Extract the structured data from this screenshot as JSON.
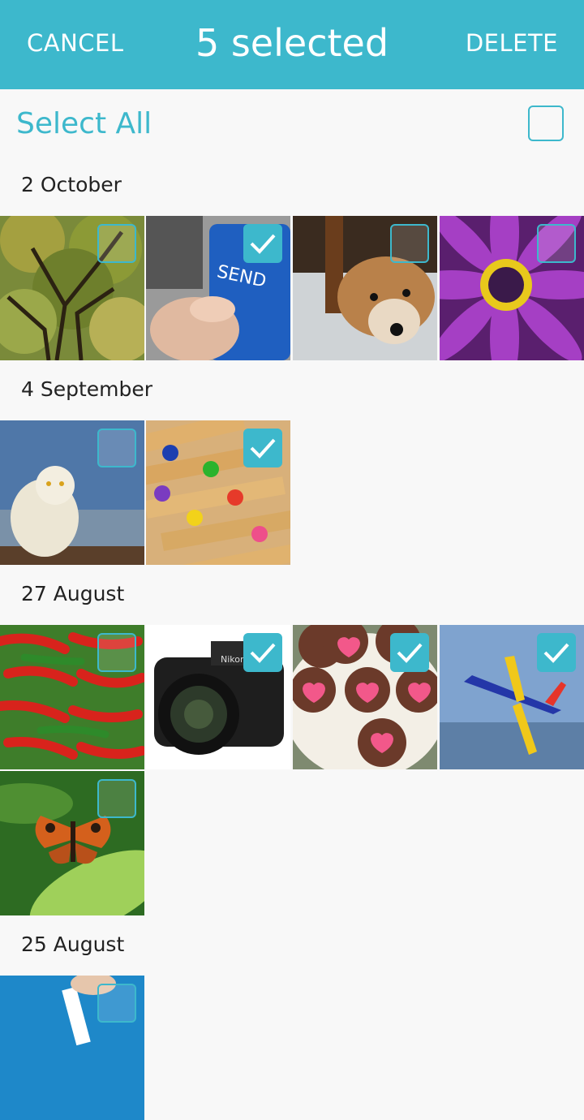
{
  "header": {
    "cancel_label": "CANCEL",
    "title": "5 selected",
    "delete_label": "DELETE"
  },
  "select_all": {
    "label": "Select All",
    "checked": false
  },
  "sections": [
    {
      "date": "2 October",
      "photos": [
        {
          "subject": "tree",
          "selected": false
        },
        {
          "subject": "send-key",
          "selected": true
        },
        {
          "subject": "dog",
          "selected": false
        },
        {
          "subject": "purple-flower",
          "selected": false
        }
      ]
    },
    {
      "date": "4 September",
      "photos": [
        {
          "subject": "snowy-owl",
          "selected": false
        },
        {
          "subject": "colored-pencils",
          "selected": true
        }
      ]
    },
    {
      "date": "27 August",
      "photos": [
        {
          "subject": "chili-peppers",
          "selected": false
        },
        {
          "subject": "camera",
          "selected": true
        },
        {
          "subject": "heart-cookies",
          "selected": true
        },
        {
          "subject": "airplane",
          "selected": true
        },
        {
          "subject": "butterfly",
          "selected": false
        }
      ]
    },
    {
      "date": "25 August",
      "photos": [
        {
          "subject": "hand-card",
          "selected": false
        }
      ]
    }
  ],
  "photo_text": {
    "send_key": "SEND",
    "camera_brand": "Nikon"
  },
  "colors": {
    "accent": "#3db8cc",
    "background": "#f8f8f8"
  }
}
